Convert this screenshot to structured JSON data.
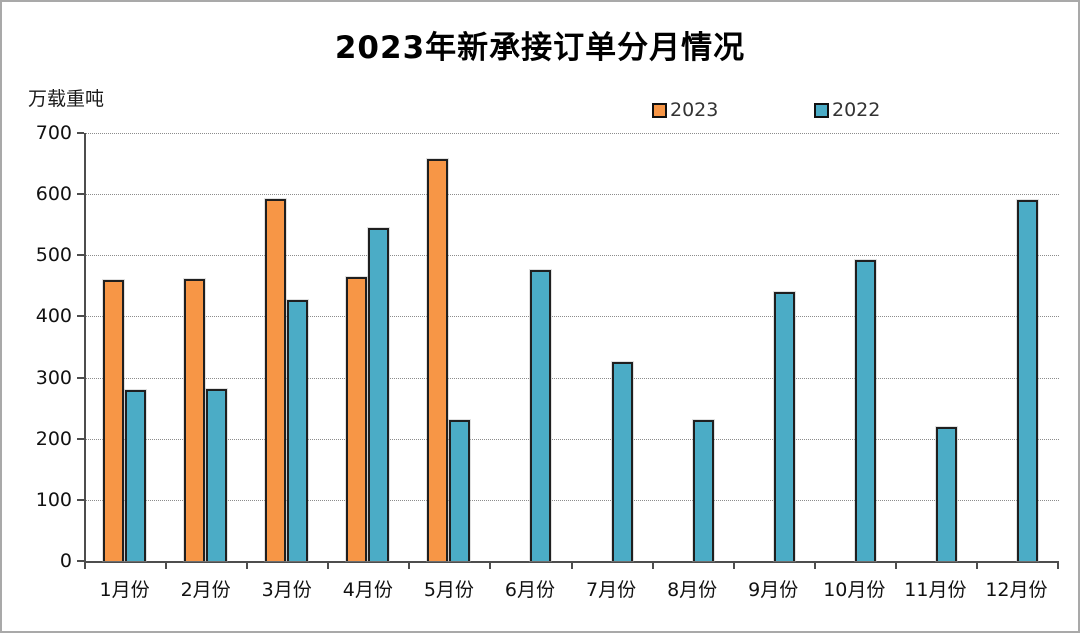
{
  "chart_data": {
    "type": "bar",
    "title": "2023年新承接订单分月情况",
    "unit_label": "万载重吨",
    "categories": [
      "1月份",
      "2月份",
      "3月份",
      "4月份",
      "5月份",
      "6月份",
      "7月份",
      "8月份",
      "9月份",
      "10月份",
      "11月份",
      "12月份"
    ],
    "series": [
      {
        "name": "2023",
        "color": "#F79646",
        "values": [
          460,
          462,
          592,
          465,
          658,
          null,
          null,
          null,
          null,
          null,
          null,
          null
        ]
      },
      {
        "name": "2022",
        "color": "#4BACC6",
        "values": [
          280,
          282,
          427,
          545,
          230,
          476,
          325,
          231,
          440,
          493,
          220,
          591
        ]
      }
    ],
    "xlabel": "",
    "ylabel": "万载重吨",
    "ylim": [
      0,
      700
    ],
    "ytick_interval": 100,
    "grid": "horizontal-dotted",
    "legend_position": "top-right",
    "axis_color": "#4d4d4d",
    "gridline_color": "#8c8c8c"
  }
}
